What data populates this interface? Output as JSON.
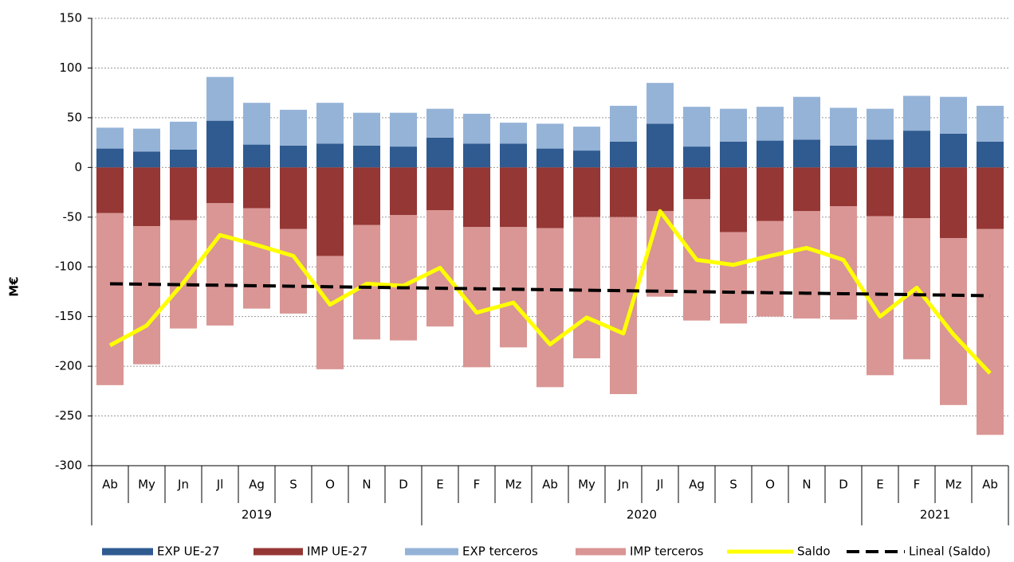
{
  "chart_data": {
    "type": "bar",
    "y_label": "M€",
    "categories": [
      "Ab",
      "My",
      "Jn",
      "Jl",
      "Ag",
      "S",
      "O",
      "N",
      "D",
      "E",
      "F",
      "Mz",
      "Ab",
      "My",
      "Jn",
      "Jl",
      "Ag",
      "S",
      "O",
      "N",
      "D",
      "E",
      "F",
      "Mz",
      "Ab"
    ],
    "category_groups": [
      "2019",
      "2019",
      "2019",
      "2019",
      "2019",
      "2019",
      "2019",
      "2019",
      "2019",
      "2020",
      "2020",
      "2020",
      "2020",
      "2020",
      "2020",
      "2020",
      "2020",
      "2020",
      "2020",
      "2020",
      "2020",
      "2021",
      "2021",
      "2021",
      "2021"
    ],
    "series": [
      {
        "name": "EXP UE-27",
        "type": "bar",
        "color": "#2f5b91",
        "values": [
          19,
          16,
          18,
          47,
          23,
          22,
          24,
          22,
          21,
          30,
          24,
          24,
          19,
          17,
          26,
          44,
          21,
          26,
          27,
          28,
          22,
          28,
          37,
          34,
          26
        ]
      },
      {
        "name": "IMP UE-27",
        "type": "bar",
        "color": "#953735",
        "values": [
          -46,
          -59,
          -53,
          -36,
          -41,
          -62,
          -89,
          -58,
          -48,
          -43,
          -60,
          -60,
          -61,
          -50,
          -50,
          -44,
          -32,
          -65,
          -54,
          -44,
          -39,
          -49,
          -51,
          -71,
          -62
        ]
      },
      {
        "name": "EXP terceros",
        "type": "bar",
        "color": "#95b3d7",
        "values": [
          21,
          23,
          28,
          44,
          42,
          36,
          41,
          33,
          34,
          29,
          30,
          21,
          25,
          24,
          36,
          41,
          40,
          33,
          34,
          43,
          38,
          31,
          35,
          37,
          36
        ]
      },
      {
        "name": "IMP terceros",
        "type": "bar",
        "color": "#d99694",
        "values": [
          -173,
          -139,
          -109,
          -123,
          -101,
          -85,
          -114,
          -115,
          -126,
          -117,
          -141,
          -121,
          -160,
          -142,
          -178,
          -86,
          -122,
          -92,
          -96,
          -108,
          -114,
          -160,
          -142,
          -168,
          -207
        ]
      },
      {
        "name": "Saldo",
        "type": "line",
        "color": "#ffff00",
        "values": [
          -179,
          -159,
          -116,
          -68,
          -78,
          -89,
          -138,
          -117,
          -119,
          -101,
          -146,
          -136,
          -178,
          -151,
          -167,
          -44,
          -93,
          -98,
          -89,
          -81,
          -93,
          -150,
          -121,
          -168,
          -207
        ]
      },
      {
        "name": "Lineal (Saldo)",
        "type": "line",
        "dashed": true,
        "color": "#000000",
        "values": [
          -117,
          -117.5,
          -118,
          -118.5,
          -119,
          -119.5,
          -120,
          -120.5,
          -121,
          -121.5,
          -122,
          -122.5,
          -123,
          -123.5,
          -124,
          -124.5,
          -125,
          -125.5,
          -126,
          -126.5,
          -127,
          -127.5,
          -128,
          -128.5,
          -129
        ]
      }
    ],
    "ylim": [
      -300,
      150
    ],
    "yticks": [
      -300,
      -250,
      -200,
      -150,
      -100,
      -50,
      0,
      50,
      100,
      150
    ],
    "grid": true,
    "legend": "bottom"
  }
}
